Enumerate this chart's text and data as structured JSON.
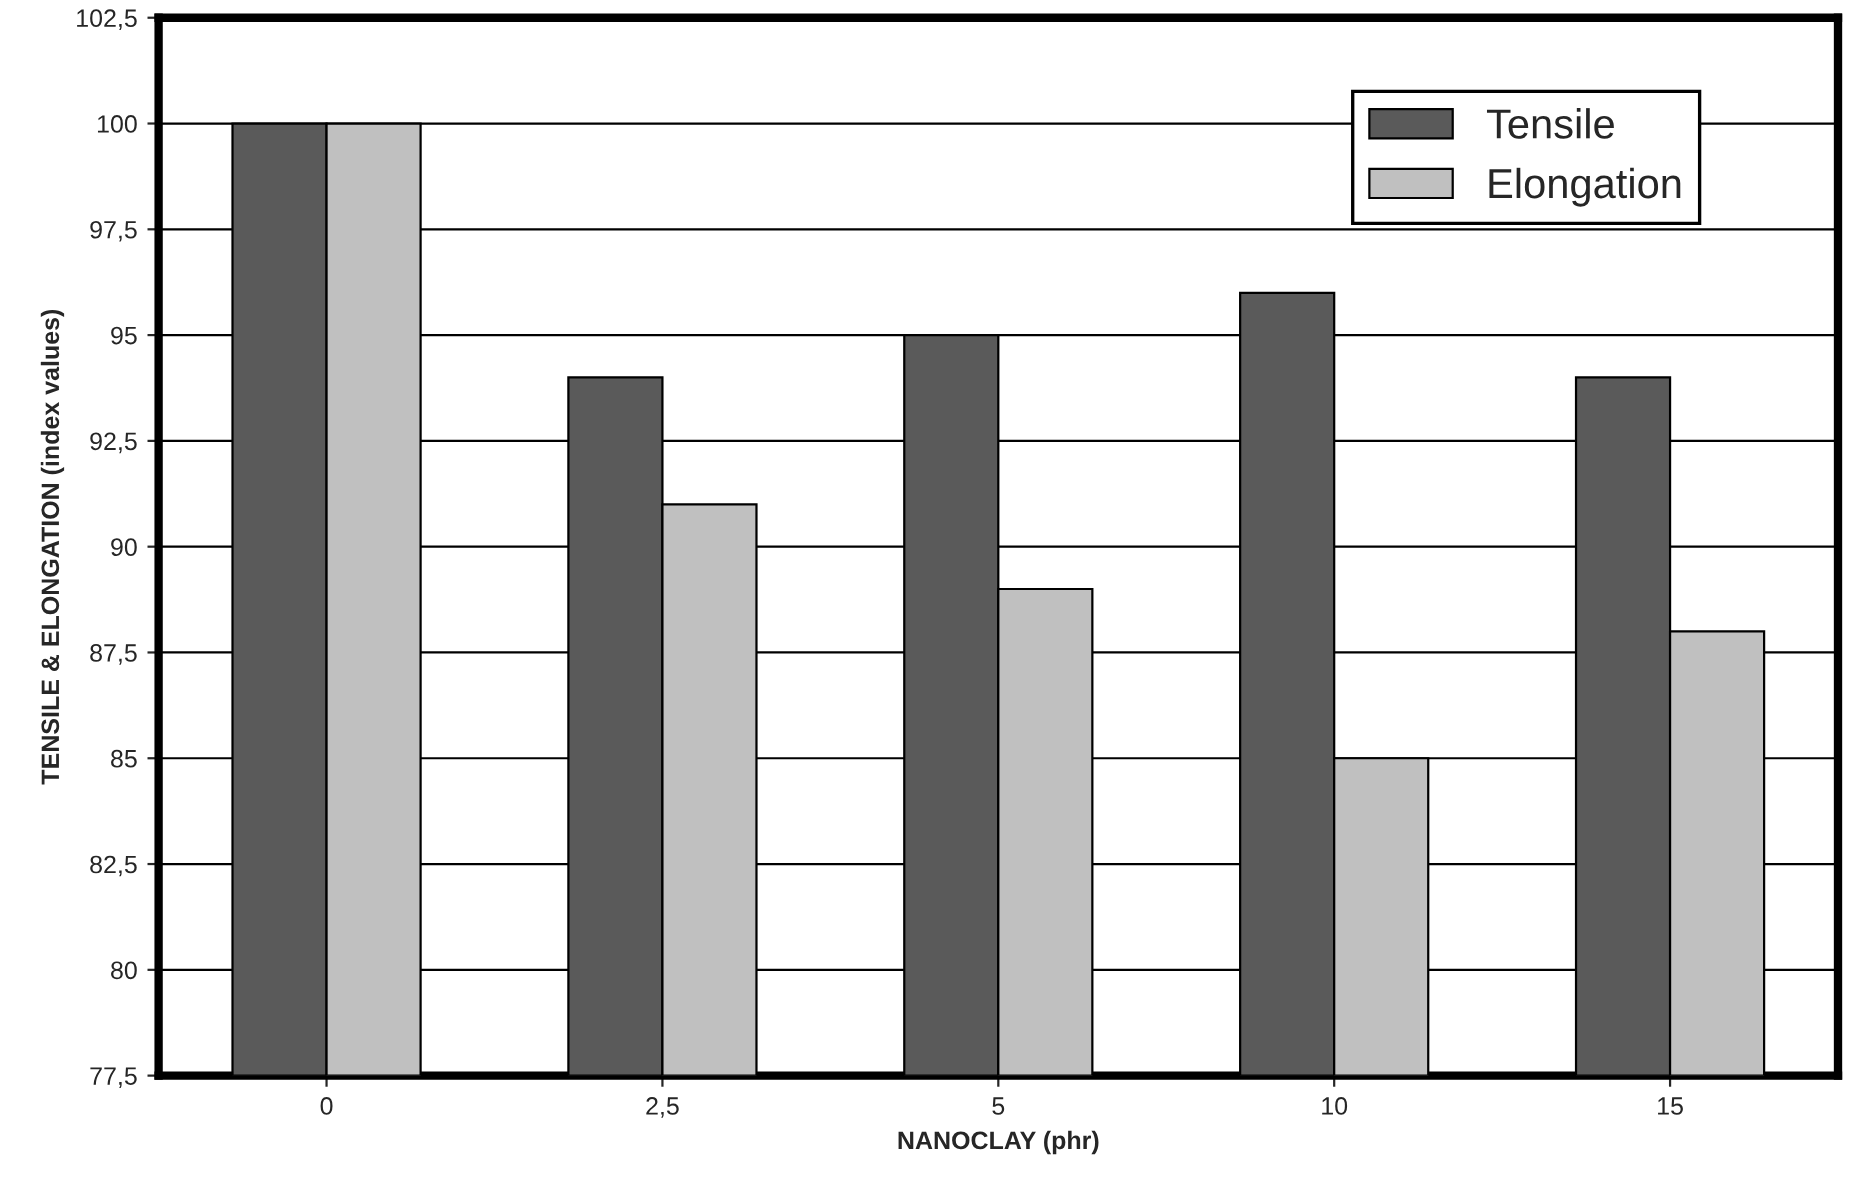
{
  "chart_data": {
    "type": "bar",
    "xlabel": "NANOCLAY (phr)",
    "ylabel": "TENSILE & ELONGATION (index values)",
    "categories": [
      "0",
      "2,5",
      "5",
      "10",
      "15"
    ],
    "series": [
      {
        "name": "Tensile",
        "color": "#5a5a5a",
        "values": [
          100,
          94,
          95,
          96,
          94
        ]
      },
      {
        "name": "Elongation",
        "color": "#c0c0c0",
        "values": [
          100,
          91,
          89,
          85,
          88
        ]
      }
    ],
    "ylim": [
      77.5,
      102.5
    ],
    "yticks": [
      {
        "value": 77.5,
        "label": "77,5"
      },
      80,
      {
        "value": 82.5,
        "label": "82,5"
      },
      85,
      {
        "value": 87.5,
        "label": "87,5"
      },
      90,
      {
        "value": 92.5,
        "label": "92,5"
      },
      95,
      {
        "value": 97.5,
        "label": "97,5"
      },
      100,
      {
        "value": 102.5,
        "label": "102,5"
      }
    ],
    "grid": "y",
    "legend": "top right"
  }
}
